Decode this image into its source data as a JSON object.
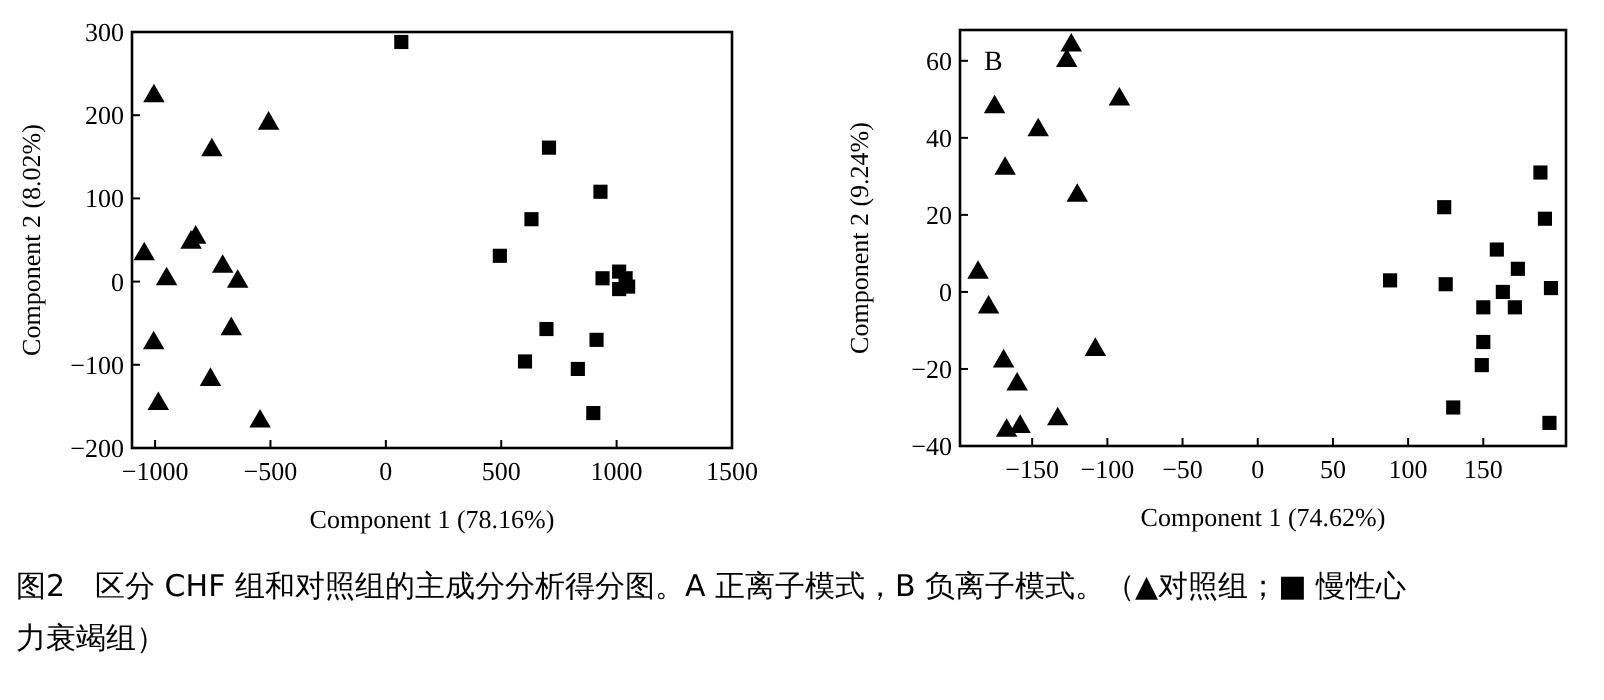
{
  "chart_data": [
    {
      "type": "scatter",
      "xlabel": "Component 1 (78.16%)",
      "ylabel": "Component 2 (8.02%)",
      "xlim": [
        -1100,
        1500
      ],
      "ylim": [
        -200,
        300
      ],
      "xticks": [
        -1000,
        -500,
        0,
        500,
        1000,
        1500
      ],
      "yticks": [
        -200,
        -100,
        0,
        100,
        200,
        300
      ],
      "grid": false,
      "annotations": [
        "图2　区分 CHF 组和对照组的主成分分析得分图。A 正离子模式，B 负离子模式。（▲对照组；■ 慢性心力衰竭组）"
      ],
      "series": [
        {
          "color": "#000000",
          "marker": "triangle",
          "x": [
            -1005,
            -508,
            -754,
            -824,
            -844,
            -1047,
            -950,
            -707,
            -642,
            -670,
            -1006,
            -760,
            -986,
            -545
          ],
          "values": [
            223,
            190,
            158,
            53,
            47,
            33,
            3,
            18,
            0,
            -57,
            -74,
            -118,
            -147,
            -168
          ]
        },
        {
          "color": "#000000",
          "marker": "square",
          "x": [
            67,
            707,
            930,
            631,
            494,
            939,
            1011,
            1039,
            1011,
            1050,
            696,
            913,
            603,
            832,
            899
          ],
          "values": [
            288,
            161,
            108,
            75,
            31,
            4,
            12,
            4,
            -9,
            -6,
            -57,
            -70,
            -96,
            -105,
            -158
          ]
        }
      ]
    },
    {
      "type": "scatter",
      "title": "B",
      "xlabel": "Component 1 (74.62%)",
      "ylabel": "Component 2 (9.24%)",
      "xlim": [
        -198,
        205
      ],
      "ylim": [
        -40,
        68
      ],
      "xticks": [
        -150,
        -100,
        -50,
        0,
        50,
        100,
        150
      ],
      "yticks": [
        -40,
        -20,
        0,
        20,
        40,
        60
      ],
      "grid": false,
      "series": [
        {
          "color": "#000000",
          "marker": "triangle",
          "x": [
            -124,
            -127,
            -175,
            -92,
            -146,
            -168,
            -120,
            -186,
            -179,
            -108,
            -169,
            -160,
            -167,
            -158,
            -133
          ],
          "values": [
            64,
            60,
            48,
            50,
            42,
            32,
            25,
            5,
            -4,
            -15,
            -18,
            -24,
            -36,
            -35,
            -33
          ]
        },
        {
          "color": "#000000",
          "marker": "square",
          "x": [
            88,
            124,
            125,
            188,
            191,
            159,
            173,
            163,
            195,
            150,
            171,
            150,
            149,
            130,
            194
          ],
          "values": [
            3,
            22,
            2,
            31,
            19,
            11,
            6,
            0,
            1,
            -4,
            -4,
            -13,
            -19,
            -30,
            -34
          ]
        }
      ]
    }
  ]
}
